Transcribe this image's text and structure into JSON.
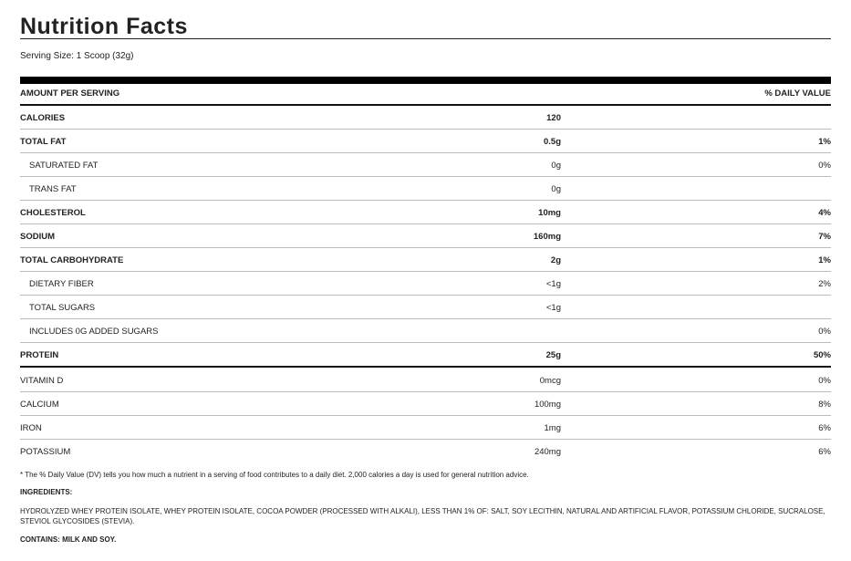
{
  "title": "Nutrition Facts",
  "serving_size": "Serving Size: 1 Scoop (32g)",
  "header": {
    "amount": "AMOUNT PER SERVING",
    "dv": "% DAILY VALUE"
  },
  "rows": [
    {
      "name": "CALORIES",
      "amount": "120",
      "dv": "",
      "bold": true,
      "sub": false
    },
    {
      "name": "TOTAL FAT",
      "amount": "0.5g",
      "dv": "1%",
      "bold": true,
      "sub": false
    },
    {
      "name": "SATURATED FAT",
      "amount": "0g",
      "dv": "0%",
      "bold": false,
      "sub": true
    },
    {
      "name": "TRANS FAT",
      "amount": "0g",
      "dv": "",
      "bold": false,
      "sub": true
    },
    {
      "name": "CHOLESTEROL",
      "amount": "10mg",
      "dv": "4%",
      "bold": true,
      "sub": false
    },
    {
      "name": "SODIUM",
      "amount": "160mg",
      "dv": "7%",
      "bold": true,
      "sub": false
    },
    {
      "name": "TOTAL CARBOHYDRATE",
      "amount": "2g",
      "dv": "1%",
      "bold": true,
      "sub": false
    },
    {
      "name": "DIETARY FIBER",
      "amount": "<1g",
      "dv": "2%",
      "bold": false,
      "sub": true
    },
    {
      "name": "TOTAL SUGARS",
      "amount": "<1g",
      "dv": "",
      "bold": false,
      "sub": true
    },
    {
      "name": "INCLUDES 0G ADDED SUGARS",
      "amount": "",
      "dv": "0%",
      "bold": false,
      "sub": true
    },
    {
      "name": "PROTEIN",
      "amount": "25g",
      "dv": "50%",
      "bold": true,
      "sub": false
    }
  ],
  "vitamins": [
    {
      "name": "VITAMIN D",
      "amount": "0mcg",
      "dv": "0%"
    },
    {
      "name": "CALCIUM",
      "amount": "100mg",
      "dv": "8%"
    },
    {
      "name": "IRON",
      "amount": "1mg",
      "dv": "6%"
    },
    {
      "name": "POTASSIUM",
      "amount": "240mg",
      "dv": "6%"
    }
  ],
  "footnote": "* The % Daily Value (DV) tells you how much a nutrient in a serving of food contributes to a daily diet. 2,000 calories a day is used for general nutrition advice.",
  "ingredients_label": "INGREDIENTS:",
  "ingredients": "HYDROLYZED WHEY PROTEIN ISOLATE, WHEY PROTEIN ISOLATE, COCOA POWDER (PROCESSED WITH ALKALI), LESS THAN 1% OF: SALT, SOY LECITHIN, NATURAL AND ARTIFICIAL FLAVOR, POTASSIUM CHLORIDE, SUCRALOSE, STEVIOL GLYCOSIDES (STEVIA).",
  "contains": "CONTAINS: MILK AND SOY."
}
